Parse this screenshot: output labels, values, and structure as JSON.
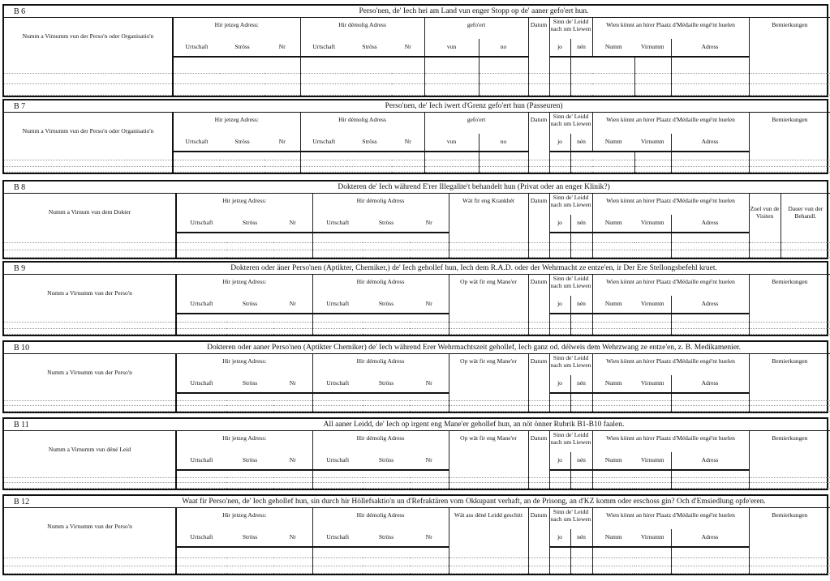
{
  "common": {
    "current_address": "Hir jetzeg Adress:",
    "former_address": "Hir démolig Adress",
    "urtschaft": "Urtschaft",
    "stross": "Ströss",
    "nr": "Nr",
    "datum": "Datum",
    "sinn": "Sinn de' Leidd nach um Liewen",
    "jo": "jo",
    "nen": "nén",
    "wien": "Wien könnt an hirer Plaatz d'Médaille engé'nt huelen",
    "numm": "Numm",
    "virnumm": "Virnumm",
    "adress": "Adress",
    "bemierkungen": "Bemierkungen"
  },
  "sections": [
    {
      "code": "B 6",
      "title": "Perso'nen, de' Iech hei am Land vun enger Stopp  op de' aaner gefo'ert hun.",
      "name_header": "Numm a Virnumm vun der Perso'n oder Organisatio'n",
      "middle": {
        "label": "gefo'ert",
        "sub": [
          "vun",
          "no"
        ]
      },
      "remarks": [
        "Bemierkungen"
      ]
    },
    {
      "code": "B 7",
      "title": "Perso'nen, de' Iech iwert d'Grenz gefo'ert hun  (Passeuren)",
      "name_header": "Numm a Virnumm vun der Perso'n oder Organisatio'n",
      "middle": {
        "label": "gefo'ert",
        "sub": [
          "vun",
          "no"
        ]
      },
      "remarks": [
        "Bemierkungen"
      ]
    },
    {
      "code": "B 8",
      "title": "Dokteren de' Iech während E'rer Illegalite't behandelt hun (Privat oder an enger Klinik?)",
      "name_header": "Numm a Virnum vun dem Dokter",
      "middle": {
        "label": "Wät fir eng Krankhét"
      },
      "remarks": [
        "Zuel vun de Visiten",
        "Dauer vun der Behandl."
      ]
    },
    {
      "code": "B 9",
      "title": "Dokteren oder äner Perso'nen (Aptikter, Chemiker,) de' Iech gehollef hun, Iech dem R.A.D. oder der Wehrmacht ze entze'en, ir Der Ere Stellongsbefehl kruet.",
      "name_header": "Numm a Virnumm vun der Perso'n",
      "middle": {
        "label": "Op wät fir eng Mane'er"
      },
      "remarks": [
        "Bemierkungen"
      ]
    },
    {
      "code": "B 10",
      "title": "Dokteren oder aaner Perso'nen (Aptikter Chemiker) de' Iech während Erer Wehrmachtszeit gehollef, Iech ganz od. délweis dem Wehrzwang ze entze'en, z. B. Medikamenier.",
      "name_header": "Numm a Virnumm vun der Perso'n",
      "middle": {
        "label": "Op wät fir eng Mane'er"
      },
      "remarks": [
        "Bemierkungen"
      ]
    },
    {
      "code": "B 11",
      "title": "All aaner Leidd, de' Iech op irgent eng Mane'er gehollef hun, an nöt önner Rubrik B1-B10 faalen.",
      "name_header": "Numm a Virnumm vun déné Leid",
      "middle": {
        "label": "Op wät fir eng Mane'er"
      },
      "remarks": [
        "Bemierkungen"
      ]
    },
    {
      "code": "B 12",
      "title": "Waat fir Perso'nen, de' Iech gehollef hun, sin durch hir Höllefsaktio'n un d'Refraktären vom Okkupant verhaft, an de Prisong, an d'KZ komm oder  erschoss gin? Och d'Emsiedlung opfe'eren.",
      "name_header": "Numm a Virnumm vun der Perso'n",
      "middle": {
        "label": "Wät ass déné Leidd geschitt"
      },
      "remarks": [
        "Bemierkungen"
      ]
    }
  ]
}
